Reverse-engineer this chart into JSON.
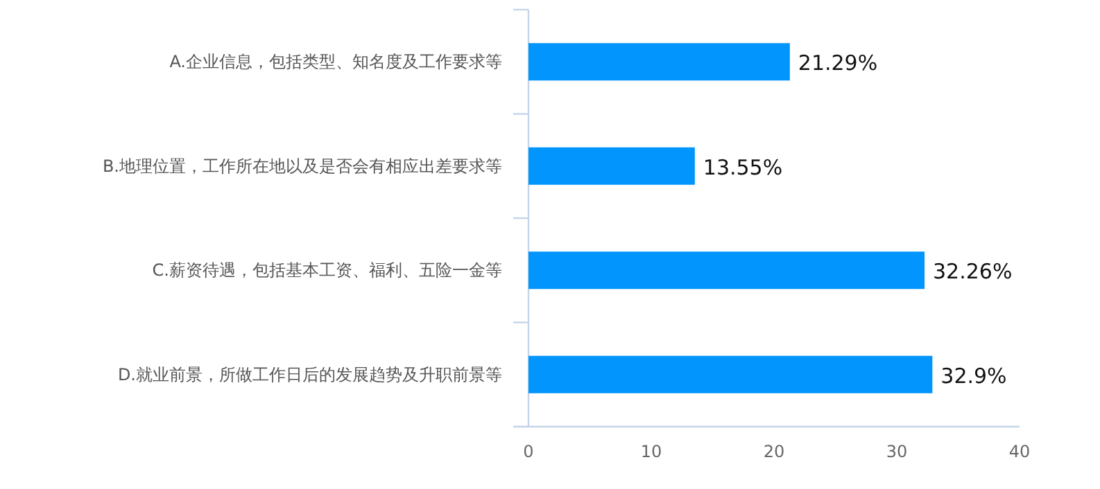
{
  "chart_data": {
    "type": "bar",
    "orientation": "horizontal",
    "categories": [
      "A.企业信息，包括类型、知名度及工作要求等",
      "B.地理位置，工作所在地以及是否会有相应出差要求等",
      "C.薪资待遇，包括基本工资、福利、五险一金等",
      "D.就业前景，所做工作日后的发展趋势及升职前景等"
    ],
    "values": [
      21.29,
      13.55,
      32.26,
      32.9
    ],
    "value_labels": [
      "21.29%",
      "13.55%",
      "32.26%",
      "32.9%"
    ],
    "color": "#0295fe",
    "xlim": [
      0,
      40
    ],
    "xticks": [
      0,
      10,
      20,
      30,
      40
    ],
    "grid": false
  }
}
